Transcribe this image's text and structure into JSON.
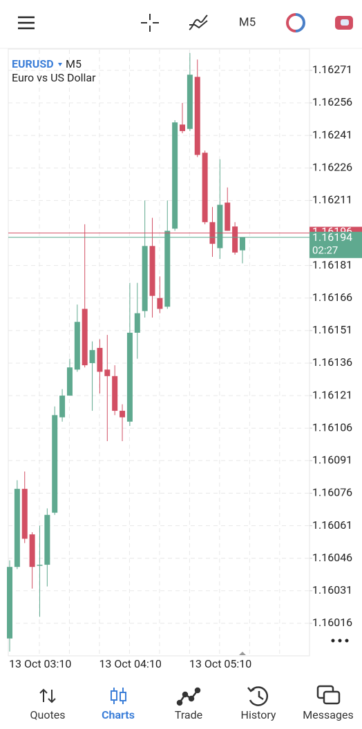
{
  "toolbar": {
    "timeframe": "M5"
  },
  "chart_data": {
    "type": "candlestick",
    "symbol": "EURUSD",
    "timeframe": "M5",
    "description": "Euro vs US Dollar",
    "x": [
      "13 Oct 03:10",
      null,
      null,
      null,
      null,
      null,
      null,
      null,
      null,
      null,
      null,
      null,
      "13 Oct 04:10",
      null,
      null,
      null,
      null,
      null,
      null,
      null,
      null,
      null,
      null,
      null,
      "13 Oct 05:10",
      null,
      null,
      null,
      null,
      null,
      null,
      null
    ],
    "open": [
      1.16009,
      1.16042,
      1.16078,
      1.16057,
      1.16043,
      1.16043,
      1.16067,
      1.16111,
      1.16121,
      1.16133,
      1.16161,
      1.16136,
      1.16143,
      1.16133,
      1.1613,
      1.16114,
      1.16109,
      1.1615,
      1.1616,
      1.1619,
      1.16166,
      1.16162,
      1.16198,
      1.16246,
      1.16244,
      1.16268,
      1.16233,
      1.16201,
      1.16189,
      1.1621,
      1.16199,
      1.16188
    ],
    "high": [
      1.16045,
      1.16082,
      1.16086,
      1.16058,
      1.16061,
      1.16069,
      1.16116,
      1.16124,
      1.16138,
      1.16163,
      1.162,
      1.16146,
      1.16147,
      1.16149,
      1.16135,
      1.16117,
      1.16173,
      1.16173,
      1.16211,
      1.16203,
      1.16176,
      1.16211,
      1.16248,
      1.16256,
      1.16279,
      1.16276,
      1.16234,
      1.16208,
      1.1623,
      1.16217,
      1.16201,
      1.16194
    ],
    "low": [
      1.16003,
      1.16041,
      1.16053,
      1.16032,
      1.16019,
      1.16033,
      1.16066,
      1.16109,
      1.16121,
      1.16132,
      1.16134,
      1.16114,
      1.16122,
      1.161,
      1.16112,
      1.161,
      1.16107,
      1.16138,
      1.16157,
      1.16157,
      1.16159,
      1.16161,
      1.16197,
      1.16242,
      1.16243,
      1.16231,
      1.162,
      1.16185,
      1.16184,
      1.16197,
      1.16186,
      1.16182
    ],
    "close": [
      1.16042,
      1.16078,
      1.16055,
      1.16042,
      1.16043,
      1.16066,
      1.16112,
      1.16121,
      1.16134,
      1.16155,
      1.16135,
      1.16142,
      1.16132,
      1.1613,
      1.16114,
      1.16111,
      1.1615,
      1.16159,
      1.1619,
      1.16167,
      1.16161,
      1.16197,
      1.16247,
      1.16243,
      1.16269,
      1.16232,
      1.16201,
      1.16191,
      1.16209,
      1.16197,
      1.16187,
      1.16194
    ],
    "ylim": [
      1.16001,
      1.16281
    ],
    "yticks": [
      1.16271,
      1.16256,
      1.16241,
      1.16226,
      1.16211,
      1.16196,
      1.16181,
      1.16166,
      1.16151,
      1.16136,
      1.16121,
      1.16106,
      1.16091,
      1.16076,
      1.16061,
      1.16046,
      1.16031,
      1.16016
    ],
    "grid": true,
    "up_color": "#5fa98f",
    "down_color": "#d24f63",
    "ask": 1.16196,
    "bid": 1.16194,
    "bar_timer": "02:27"
  },
  "nav": [
    {
      "label": "Quotes"
    },
    {
      "label": "Charts",
      "active": true
    },
    {
      "label": "Trade"
    },
    {
      "label": "History"
    },
    {
      "label": "Messages"
    }
  ]
}
